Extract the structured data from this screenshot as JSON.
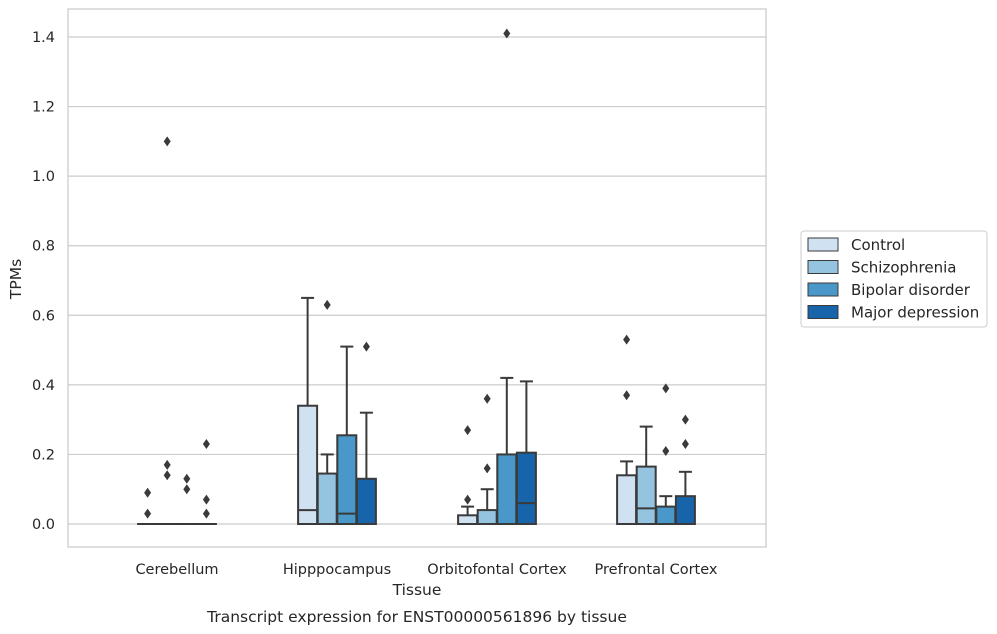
{
  "chart_data": {
    "type": "box",
    "xlabel": "Tissue",
    "ylabel": "TPMs",
    "caption": "Transcript expression for ENST00000561896 by tissue",
    "ylim": [
      -0.07,
      1.48
    ],
    "yticks": [
      "0.0",
      "0.2",
      "0.4",
      "0.6",
      "0.8",
      "1.0",
      "1.2",
      "1.4"
    ],
    "grid": true,
    "legend_position": "right",
    "categories": [
      "Cerebellum",
      "Hipppocampus",
      "Orbitofontal Cortex",
      "Prefrontal Cortex"
    ],
    "series": [
      {
        "name": "Control",
        "color": "#d0e1f2",
        "boxes": [
          {
            "q1": 0,
            "median": 0,
            "q3": 0,
            "whisker_low": 0,
            "whisker_high": 0,
            "outliers": [
              0.03,
              0.09
            ]
          },
          {
            "q1": 0,
            "median": 0.04,
            "q3": 0.34,
            "whisker_low": 0,
            "whisker_high": 0.65,
            "outliers": []
          },
          {
            "q1": 0,
            "median": 0.0,
            "q3": 0.025,
            "whisker_low": 0,
            "whisker_high": 0.05,
            "outliers": [
              0.07,
              0.27
            ]
          },
          {
            "q1": 0,
            "median": 0.0,
            "q3": 0.14,
            "whisker_low": 0,
            "whisker_high": 0.18,
            "outliers": [
              0.37,
              0.53
            ]
          }
        ]
      },
      {
        "name": "Schizophrenia",
        "color": "#94c4df",
        "boxes": [
          {
            "q1": 0,
            "median": 0,
            "q3": 0,
            "whisker_low": 0,
            "whisker_high": 0,
            "outliers": [
              0.14,
              0.17,
              1.1
            ]
          },
          {
            "q1": 0,
            "median": 0.0,
            "q3": 0.145,
            "whisker_low": 0,
            "whisker_high": 0.2,
            "outliers": [
              0.63
            ]
          },
          {
            "q1": 0,
            "median": 0.0,
            "q3": 0.04,
            "whisker_low": 0,
            "whisker_high": 0.1,
            "outliers": [
              0.16,
              0.36
            ]
          },
          {
            "q1": 0,
            "median": 0.045,
            "q3": 0.165,
            "whisker_low": 0,
            "whisker_high": 0.28,
            "outliers": []
          }
        ]
      },
      {
        "name": "Bipolar disorder",
        "color": "#4a98c9",
        "boxes": [
          {
            "q1": 0,
            "median": 0,
            "q3": 0,
            "whisker_low": 0,
            "whisker_high": 0,
            "outliers": [
              0.1,
              0.13
            ]
          },
          {
            "q1": 0,
            "median": 0.03,
            "q3": 0.255,
            "whisker_low": 0,
            "whisker_high": 0.51,
            "outliers": []
          },
          {
            "q1": 0,
            "median": 0.0,
            "q3": 0.2,
            "whisker_low": 0,
            "whisker_high": 0.42,
            "outliers": [
              1.41
            ]
          },
          {
            "q1": 0,
            "median": 0.0,
            "q3": 0.05,
            "whisker_low": 0,
            "whisker_high": 0.08,
            "outliers": [
              0.21,
              0.39
            ]
          }
        ]
      },
      {
        "name": "Major depression",
        "color": "#1764ab",
        "boxes": [
          {
            "q1": 0,
            "median": 0,
            "q3": 0,
            "whisker_low": 0,
            "whisker_high": 0,
            "outliers": [
              0.03,
              0.07,
              0.23
            ]
          },
          {
            "q1": 0,
            "median": 0.0,
            "q3": 0.13,
            "whisker_low": 0,
            "whisker_high": 0.32,
            "outliers": [
              0.51
            ]
          },
          {
            "q1": 0,
            "median": 0.06,
            "q3": 0.205,
            "whisker_low": 0,
            "whisker_high": 0.41,
            "outliers": []
          },
          {
            "q1": 0,
            "median": 0.0,
            "q3": 0.08,
            "whisker_low": 0,
            "whisker_high": 0.15,
            "outliers": [
              0.23,
              0.3
            ]
          }
        ]
      }
    ]
  },
  "colors": {
    "background": "#ffffff",
    "grid": "#cccccc",
    "frame": "#cccccc",
    "box_edge": "#3a3a3a",
    "text": "#262626"
  }
}
